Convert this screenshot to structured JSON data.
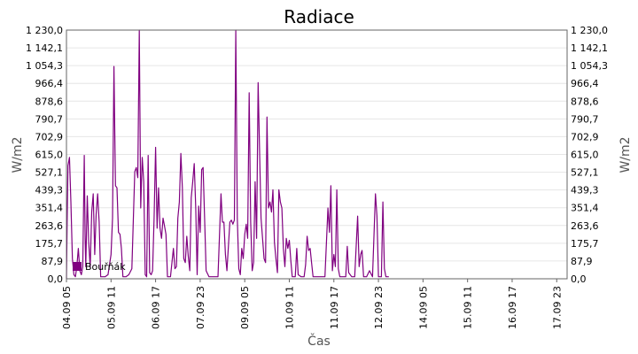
{
  "chart_data": {
    "type": "line",
    "title": "Radiace",
    "xlabel": "Čas",
    "ylabel": "W/m2",
    "ylim": [
      0,
      1230
    ],
    "grid": true,
    "legend_position": "bottom-left",
    "yticks": [
      "0,0",
      "87,9",
      "175,7",
      "263,6",
      "351,4",
      "439,3",
      "527,1",
      "615,0",
      "702,9",
      "790,7",
      "878,6",
      "966,4",
      "1 054,3",
      "1 142,1",
      "1 230,0"
    ],
    "xticks": [
      {
        "label": "04.09 05",
        "x": 0
      },
      {
        "label": "05.09 11",
        "x": 30
      },
      {
        "label": "06.09 17",
        "x": 60
      },
      {
        "label": "07.09 23",
        "x": 90
      },
      {
        "label": "09.09 05",
        "x": 120
      },
      {
        "label": "10.09 11",
        "x": 150
      },
      {
        "label": "11.09 17",
        "x": 180
      },
      {
        "label": "12.09 23",
        "x": 210
      },
      {
        "label": "14.09 05",
        "x": 240
      },
      {
        "label": "15.09 11",
        "x": 270
      },
      {
        "label": "16.09 17",
        "x": 300
      },
      {
        "label": "17.09 23",
        "x": 330
      }
    ],
    "xlim": [
      0,
      337
    ],
    "series": [
      {
        "name": "Bouřňák",
        "color": "#800080",
        "points": [
          [
            0,
            0
          ],
          [
            0.5,
            280
          ],
          [
            1,
            560
          ],
          [
            2,
            600
          ],
          [
            3,
            380
          ],
          [
            4,
            100
          ],
          [
            5,
            20
          ],
          [
            6,
            10
          ],
          [
            7,
            60
          ],
          [
            8,
            150
          ],
          [
            9,
            40
          ],
          [
            10,
            20
          ],
          [
            11,
            60
          ],
          [
            12,
            610
          ],
          [
            12.6,
            200
          ],
          [
            13,
            60
          ],
          [
            14,
            410
          ],
          [
            15,
            180
          ],
          [
            16,
            60
          ],
          [
            17,
            330
          ],
          [
            18,
            420
          ],
          [
            19,
            120
          ],
          [
            20,
            320
          ],
          [
            21,
            420
          ],
          [
            22,
            280
          ],
          [
            23,
            10
          ],
          [
            24,
            10
          ],
          [
            26,
            10
          ],
          [
            28,
            20
          ],
          [
            30,
            120
          ],
          [
            31,
            300
          ],
          [
            32,
            1050
          ],
          [
            33,
            460
          ],
          [
            34,
            450
          ],
          [
            35,
            230
          ],
          [
            36,
            220
          ],
          [
            37,
            150
          ],
          [
            38,
            10
          ],
          [
            40,
            10
          ],
          [
            42,
            20
          ],
          [
            44,
            50
          ],
          [
            46,
            530
          ],
          [
            47,
            550
          ],
          [
            48,
            500
          ],
          [
            49,
            1230
          ],
          [
            50,
            350
          ],
          [
            51,
            600
          ],
          [
            52,
            480
          ],
          [
            53,
            20
          ],
          [
            54,
            10
          ],
          [
            55,
            610
          ],
          [
            56,
            30
          ],
          [
            57,
            20
          ],
          [
            58,
            40
          ],
          [
            59,
            300
          ],
          [
            60,
            650
          ],
          [
            61,
            250
          ],
          [
            62,
            450
          ],
          [
            63,
            250
          ],
          [
            64,
            200
          ],
          [
            65,
            300
          ],
          [
            66,
            260
          ],
          [
            67,
            220
          ],
          [
            68,
            10
          ],
          [
            70,
            10
          ],
          [
            72,
            150
          ],
          [
            73,
            50
          ],
          [
            74,
            60
          ],
          [
            75,
            300
          ],
          [
            76,
            380
          ],
          [
            77,
            620
          ],
          [
            78,
            450
          ],
          [
            79,
            100
          ],
          [
            80,
            80
          ],
          [
            81,
            210
          ],
          [
            82,
            110
          ],
          [
            83,
            40
          ],
          [
            84,
            400
          ],
          [
            85,
            480
          ],
          [
            86,
            570
          ],
          [
            87,
            350
          ],
          [
            88,
            20
          ],
          [
            89,
            360
          ],
          [
            90,
            230
          ],
          [
            91,
            540
          ],
          [
            92,
            550
          ],
          [
            93,
            300
          ],
          [
            94,
            40
          ],
          [
            96,
            10
          ],
          [
            98,
            10
          ],
          [
            100,
            10
          ],
          [
            102,
            10
          ],
          [
            104,
            420
          ],
          [
            105,
            280
          ],
          [
            106,
            280
          ],
          [
            107,
            120
          ],
          [
            108,
            40
          ],
          [
            110,
            280
          ],
          [
            111,
            290
          ],
          [
            112,
            270
          ],
          [
            113,
            290
          ],
          [
            114,
            1230
          ],
          [
            115,
            300
          ],
          [
            116,
            50
          ],
          [
            117,
            20
          ],
          [
            118,
            150
          ],
          [
            119,
            100
          ],
          [
            120,
            220
          ],
          [
            121,
            270
          ],
          [
            122,
            200
          ],
          [
            123,
            920
          ],
          [
            124,
            280
          ],
          [
            125,
            40
          ],
          [
            126,
            80
          ],
          [
            127,
            480
          ],
          [
            128,
            200
          ],
          [
            129,
            970
          ],
          [
            130,
            620
          ],
          [
            131,
            300
          ],
          [
            132,
            200
          ],
          [
            133,
            100
          ],
          [
            134,
            80
          ],
          [
            135,
            800
          ],
          [
            136,
            350
          ],
          [
            137,
            380
          ],
          [
            138,
            330
          ],
          [
            139,
            440
          ],
          [
            140,
            180
          ],
          [
            141,
            100
          ],
          [
            142,
            30
          ],
          [
            143,
            440
          ],
          [
            144,
            380
          ],
          [
            145,
            350
          ],
          [
            146,
            150
          ],
          [
            147,
            60
          ],
          [
            148,
            200
          ],
          [
            149,
            150
          ],
          [
            150,
            190
          ],
          [
            151,
            90
          ],
          [
            152,
            10
          ],
          [
            154,
            10
          ],
          [
            155,
            150
          ],
          [
            156,
            20
          ],
          [
            158,
            10
          ],
          [
            160,
            10
          ],
          [
            161,
            70
          ],
          [
            162,
            210
          ],
          [
            163,
            140
          ],
          [
            164,
            150
          ],
          [
            165,
            80
          ],
          [
            166,
            10
          ],
          [
            168,
            10
          ],
          [
            170,
            10
          ],
          [
            172,
            10
          ],
          [
            174,
            10
          ],
          [
            176,
            350
          ],
          [
            177,
            230
          ],
          [
            178,
            460
          ],
          [
            179,
            40
          ],
          [
            180,
            120
          ],
          [
            181,
            60
          ],
          [
            182,
            440
          ],
          [
            183,
            50
          ],
          [
            184,
            10
          ],
          [
            186,
            10
          ],
          [
            188,
            10
          ],
          [
            189,
            160
          ],
          [
            190,
            30
          ],
          [
            192,
            10
          ],
          [
            194,
            10
          ],
          [
            196,
            310
          ],
          [
            197,
            60
          ],
          [
            198,
            120
          ],
          [
            199,
            140
          ],
          [
            200,
            10
          ],
          [
            202,
            10
          ],
          [
            204,
            40
          ],
          [
            206,
            10
          ],
          [
            208,
            420
          ],
          [
            209,
            310
          ],
          [
            210,
            10
          ],
          [
            212,
            10
          ],
          [
            213,
            380
          ],
          [
            214,
            50
          ],
          [
            215,
            10
          ],
          [
            217,
            10
          ]
        ]
      }
    ]
  }
}
